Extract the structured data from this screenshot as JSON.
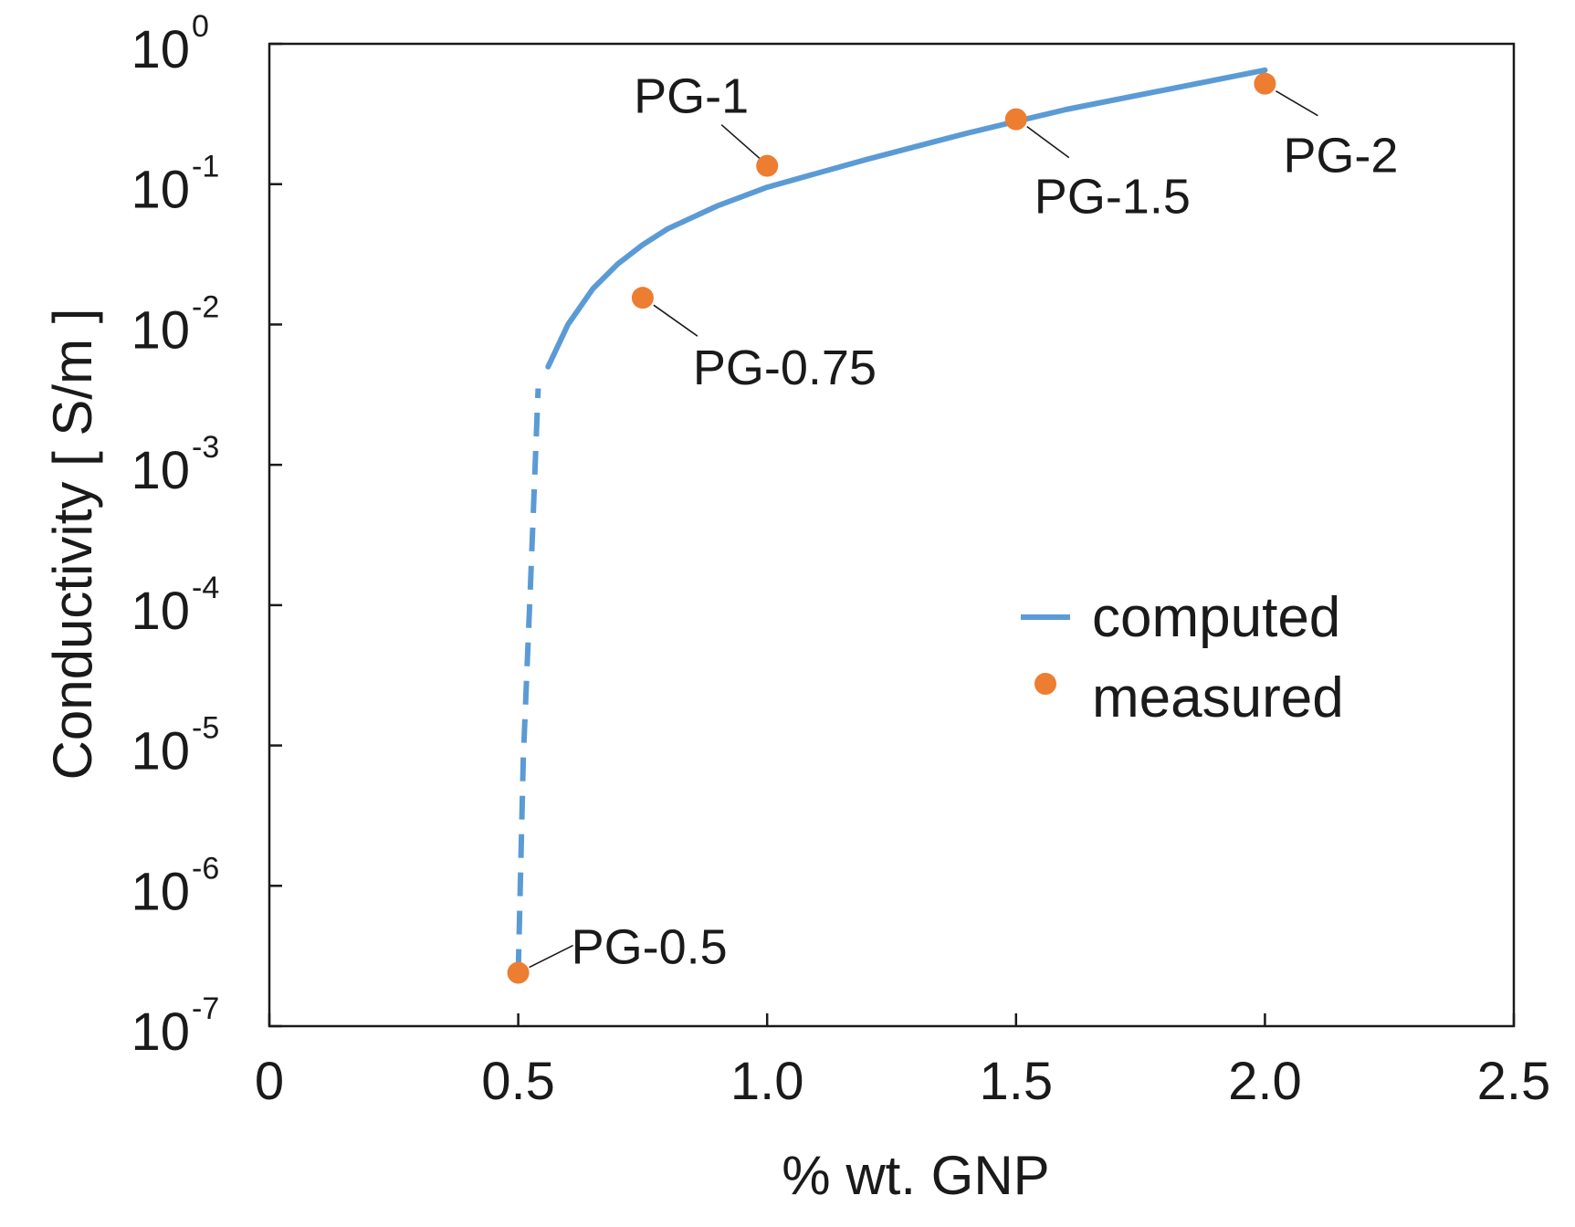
{
  "chart_data": {
    "type": "scatter",
    "title": "",
    "xlabel": "% wt. GNP",
    "ylabel": "Conductivity  [ S/m ]",
    "yscale": "log",
    "xlim": [
      0,
      2.5
    ],
    "ylim_log10": [
      -7,
      0
    ],
    "x_ticks": [
      {
        "value": 0,
        "label": "0"
      },
      {
        "value": 0.5,
        "label": "0.5"
      },
      {
        "value": 1.0,
        "label": "1.0"
      },
      {
        "value": 1.5,
        "label": "1.5"
      },
      {
        "value": 2.0,
        "label": "2.0"
      },
      {
        "value": 2.5,
        "label": "2.5"
      }
    ],
    "y_ticks": [
      {
        "exp": 0,
        "base": "10",
        "sup": "0"
      },
      {
        "exp": -1,
        "base": "10",
        "sup": "-1"
      },
      {
        "exp": -2,
        "base": "10",
        "sup": "-2"
      },
      {
        "exp": -3,
        "base": "10",
        "sup": "-3"
      },
      {
        "exp": -4,
        "base": "10",
        "sup": "-4"
      },
      {
        "exp": -5,
        "base": "10",
        "sup": "-5"
      },
      {
        "exp": -6,
        "base": "10",
        "sup": "-6"
      },
      {
        "exp": -7,
        "base": "10",
        "sup": "-7"
      }
    ],
    "series": [
      {
        "name": "computed",
        "color": "#5b9bd5",
        "dashed_segment": [
          [
            0.5,
            2.4e-07
          ],
          [
            0.51,
            8e-06
          ],
          [
            0.525,
            0.00015
          ],
          [
            0.54,
            0.0035
          ]
        ],
        "solid_segment": [
          [
            0.56,
            0.005
          ],
          [
            0.6,
            0.01
          ],
          [
            0.65,
            0.018
          ],
          [
            0.7,
            0.027
          ],
          [
            0.75,
            0.037
          ],
          [
            0.8,
            0.048
          ],
          [
            0.9,
            0.07
          ],
          [
            1.0,
            0.095
          ],
          [
            1.2,
            0.15
          ],
          [
            1.4,
            0.23
          ],
          [
            1.5,
            0.28
          ],
          [
            1.6,
            0.34
          ],
          [
            1.8,
            0.47
          ],
          [
            2.0,
            0.65
          ]
        ]
      },
      {
        "name": "measured",
        "color": "#ed7d31",
        "points": [
          {
            "x": 0.5,
            "y": 2.4e-07,
            "label": "PG-0.5"
          },
          {
            "x": 0.75,
            "y": 0.0155,
            "label": "PG-0.75"
          },
          {
            "x": 1.0,
            "y": 0.135,
            "label": "PG-1"
          },
          {
            "x": 1.5,
            "y": 0.29,
            "label": "PG-1.5"
          },
          {
            "x": 2.0,
            "y": 0.52,
            "label": "PG-2"
          }
        ]
      }
    ],
    "legend": {
      "position": "center-right",
      "entries": [
        {
          "label": "computed",
          "marker": "line"
        },
        {
          "label": "measured",
          "marker": "dot"
        }
      ]
    },
    "grid": false
  }
}
